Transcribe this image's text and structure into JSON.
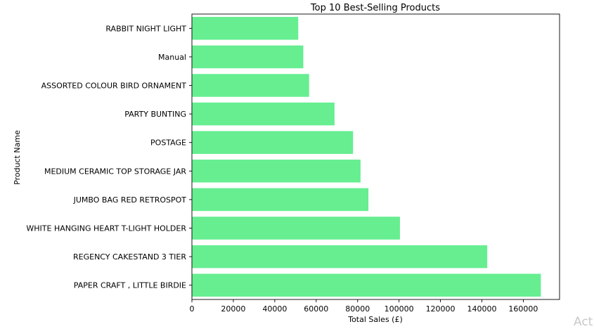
{
  "chart_data": {
    "type": "bar",
    "orientation": "horizontal",
    "title": "Top 10 Best-Selling Products",
    "xlabel": "Total Sales (£)",
    "ylabel": "Product Name",
    "xlim": [
      0,
      177500
    ],
    "xticks": [
      0,
      20000,
      40000,
      60000,
      80000,
      100000,
      120000,
      140000,
      160000
    ],
    "grid": false,
    "bar_color": "#66ee91",
    "categories": [
      "PAPER CRAFT , LITTLE BIRDIE",
      "REGENCY CAKESTAND 3 TIER",
      "WHITE HANGING HEART T-LIGHT HOLDER",
      "JUMBO BAG RED RETROSPOT",
      "MEDIUM CERAMIC TOP STORAGE JAR",
      "POSTAGE",
      "PARTY BUNTING",
      "ASSORTED COLOUR BIRD ORNAMENT",
      "Manual",
      "RABBIT NIGHT LIGHT"
    ],
    "values": [
      168469,
      142593,
      100448,
      85221,
      81417,
      77804,
      68845,
      56580,
      53780,
      51346
    ]
  },
  "watermark": "Act"
}
